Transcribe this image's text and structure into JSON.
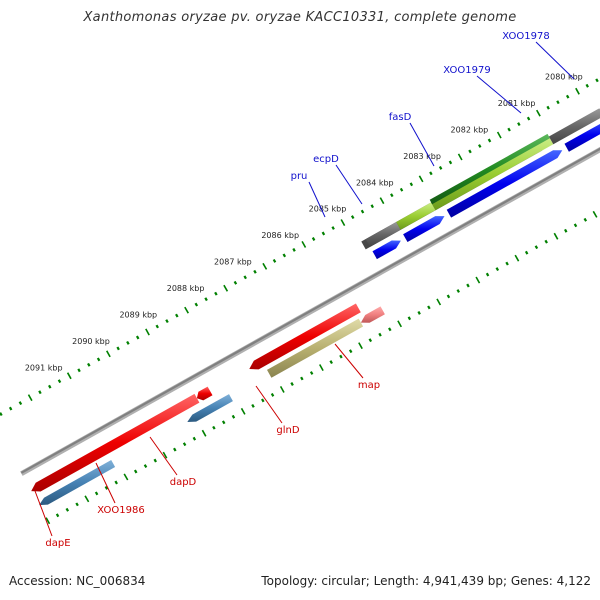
{
  "title": "Xanthomonas oryzae pv. oryzae KACC10331, complete genome",
  "footer": {
    "accession": "Accession: NC_006834",
    "topology": "Topology: circular; Length: 4,941,439 bp; Genes: 4,122"
  },
  "ticks": [
    "2080 kbp",
    "2081 kbp",
    "2082 kbp",
    "2083 kbp",
    "2084 kbp",
    "2085 kbp",
    "2086 kbp",
    "2087 kbp",
    "2088 kbp",
    "2089 kbp",
    "2090 kbp",
    "2091 kbp"
  ],
  "genes_plus": [
    "XOO1978",
    "XOO1979",
    "fasD",
    "ecpD",
    "pru"
  ],
  "genes_minus": [
    "map",
    "glnD",
    "dapD",
    "XOO1986",
    "dapE"
  ],
  "colors": {
    "plus_label": "#1010cc",
    "minus_label": "#cc0000",
    "ruler": "#008000",
    "backbone": "#808080",
    "cds_plus": "#0000ee",
    "cds_minus_dark": "#4682b4",
    "feature_red": "#ee0000",
    "feature_olive": "#b8b070",
    "feature_green": "#2e8b2e",
    "feature_lime": "#9acd32",
    "feature_gray": "#6a6a6a"
  }
}
